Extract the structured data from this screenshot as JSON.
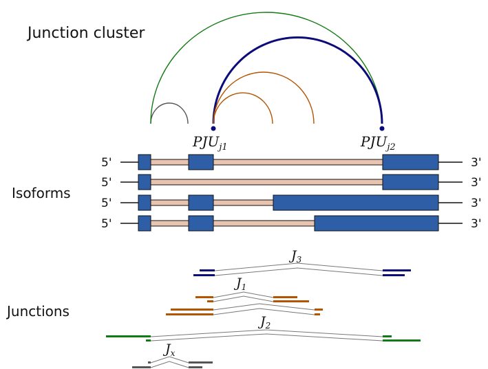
{
  "title": "Junction cluster",
  "section_labels": {
    "isoforms": "Isoforms",
    "junctions": "Junctions"
  },
  "strand_labels": {
    "five_prime": "5'",
    "three_prime": "3'"
  },
  "pju_labels": {
    "pju1": {
      "base": "PJU",
      "sub": "j1"
    },
    "pju2": {
      "base": "PJU",
      "sub": "j2"
    }
  },
  "junction_labels": {
    "j3": {
      "base": "J",
      "sub": "3"
    },
    "j1": {
      "base": "J",
      "sub": "1"
    },
    "j2": {
      "base": "J",
      "sub": "2"
    },
    "jx": {
      "base": "J",
      "sub": "x"
    }
  },
  "colors": {
    "exon": "#2e5ea6",
    "intron": "#e8c3b0",
    "j3": "#0b0b7a",
    "j1": "#b35400",
    "j2": "#127a12",
    "jx": "#555555",
    "outline": "#111111"
  },
  "isoform_count": 4,
  "junction_group_count": 4
}
